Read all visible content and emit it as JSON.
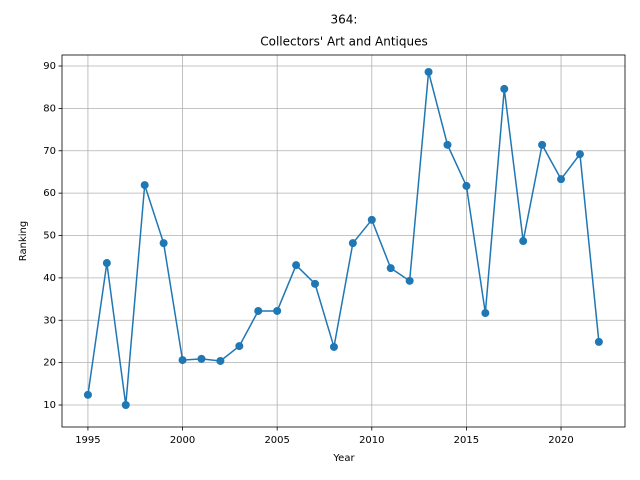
{
  "chart_data": {
    "type": "line",
    "title": [
      "364:",
      "Collectors' Art and Antiques"
    ],
    "x_label": "Year",
    "y_label": "Ranking",
    "x": [
      1995,
      1996,
      1997,
      1998,
      1999,
      2000,
      2001,
      2002,
      2003,
      2004,
      2005,
      2006,
      2007,
      2008,
      2009,
      2010,
      2011,
      2012,
      2013,
      2014,
      2015,
      2016,
      2017,
      2018,
      2019,
      2020,
      2021,
      2022
    ],
    "series": [
      {
        "color": "#1f77b4",
        "values": [
          12.4,
          43.5,
          10,
          61.9,
          48.2,
          20.6,
          20.9,
          20.4,
          23.9,
          32.2,
          32.2,
          43.0,
          38.6,
          23.7,
          48.2,
          53.7,
          42.3,
          39.3,
          88.6,
          71.4,
          61.7,
          31.7,
          84.6,
          48.7,
          71.4,
          63.3,
          69.2,
          24.9
        ]
      }
    ],
    "xlim": [
      1993.63,
      2023.38
    ],
    "ylim": [
      4.81,
      92.6
    ],
    "xticks": [
      1995,
      2000,
      2005,
      2010,
      2015,
      2020
    ],
    "yticks": [
      10,
      20,
      30,
      40,
      50,
      60,
      70,
      80,
      90
    ],
    "grid": true
  }
}
